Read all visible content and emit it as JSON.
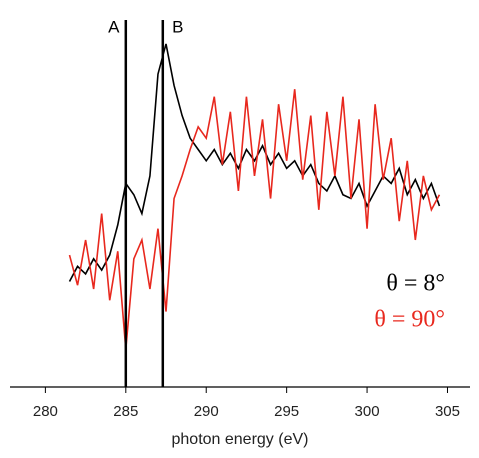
{
  "chart_data": {
    "type": "line",
    "x_label": "photon energy (eV)",
    "x": [
      281.5,
      282,
      282.5,
      283,
      283.5,
      284,
      284.5,
      285,
      285.5,
      286,
      286.5,
      287,
      287.5,
      288,
      288.5,
      289,
      289.5,
      290,
      290.5,
      291,
      291.5,
      292,
      292.5,
      293,
      293.5,
      294,
      294.5,
      295,
      295.5,
      296,
      296.5,
      297,
      297.5,
      298,
      298.5,
      299,
      299.5,
      300,
      300.5,
      301,
      301.5,
      302,
      302.5,
      303,
      303.5,
      304,
      304.5
    ],
    "series": [
      {
        "name": "θ = 8°",
        "color": "#000000",
        "values": [
          0.28,
          0.32,
          0.3,
          0.34,
          0.31,
          0.35,
          0.43,
          0.54,
          0.51,
          0.46,
          0.56,
          0.83,
          0.91,
          0.8,
          0.72,
          0.66,
          0.63,
          0.6,
          0.63,
          0.59,
          0.62,
          0.58,
          0.63,
          0.6,
          0.64,
          0.59,
          0.62,
          0.58,
          0.6,
          0.56,
          0.59,
          0.54,
          0.52,
          0.56,
          0.51,
          0.5,
          0.54,
          0.48,
          0.52,
          0.56,
          0.54,
          0.58,
          0.51,
          0.55,
          0.5,
          0.54,
          0.48
        ]
      },
      {
        "name": "θ = 90°",
        "color": "#e8281e",
        "values": [
          0.35,
          0.27,
          0.39,
          0.26,
          0.46,
          0.23,
          0.36,
          0.1,
          0.34,
          0.39,
          0.26,
          0.42,
          0.2,
          0.5,
          0.56,
          0.63,
          0.69,
          0.66,
          0.77,
          0.59,
          0.73,
          0.52,
          0.77,
          0.56,
          0.71,
          0.5,
          0.75,
          0.6,
          0.79,
          0.55,
          0.72,
          0.47,
          0.73,
          0.56,
          0.77,
          0.5,
          0.71,
          0.42,
          0.75,
          0.55,
          0.66,
          0.44,
          0.6,
          0.39,
          0.56,
          0.47,
          0.51
        ]
      }
    ],
    "vlines": [
      {
        "label": "A",
        "x": 285
      },
      {
        "label": "B",
        "x": 287.3
      }
    ],
    "xlim": [
      277.8,
      306.4
    ],
    "ylim": [
      0,
      1
    ],
    "xticks": [
      280,
      285,
      290,
      295,
      300,
      305
    ]
  }
}
